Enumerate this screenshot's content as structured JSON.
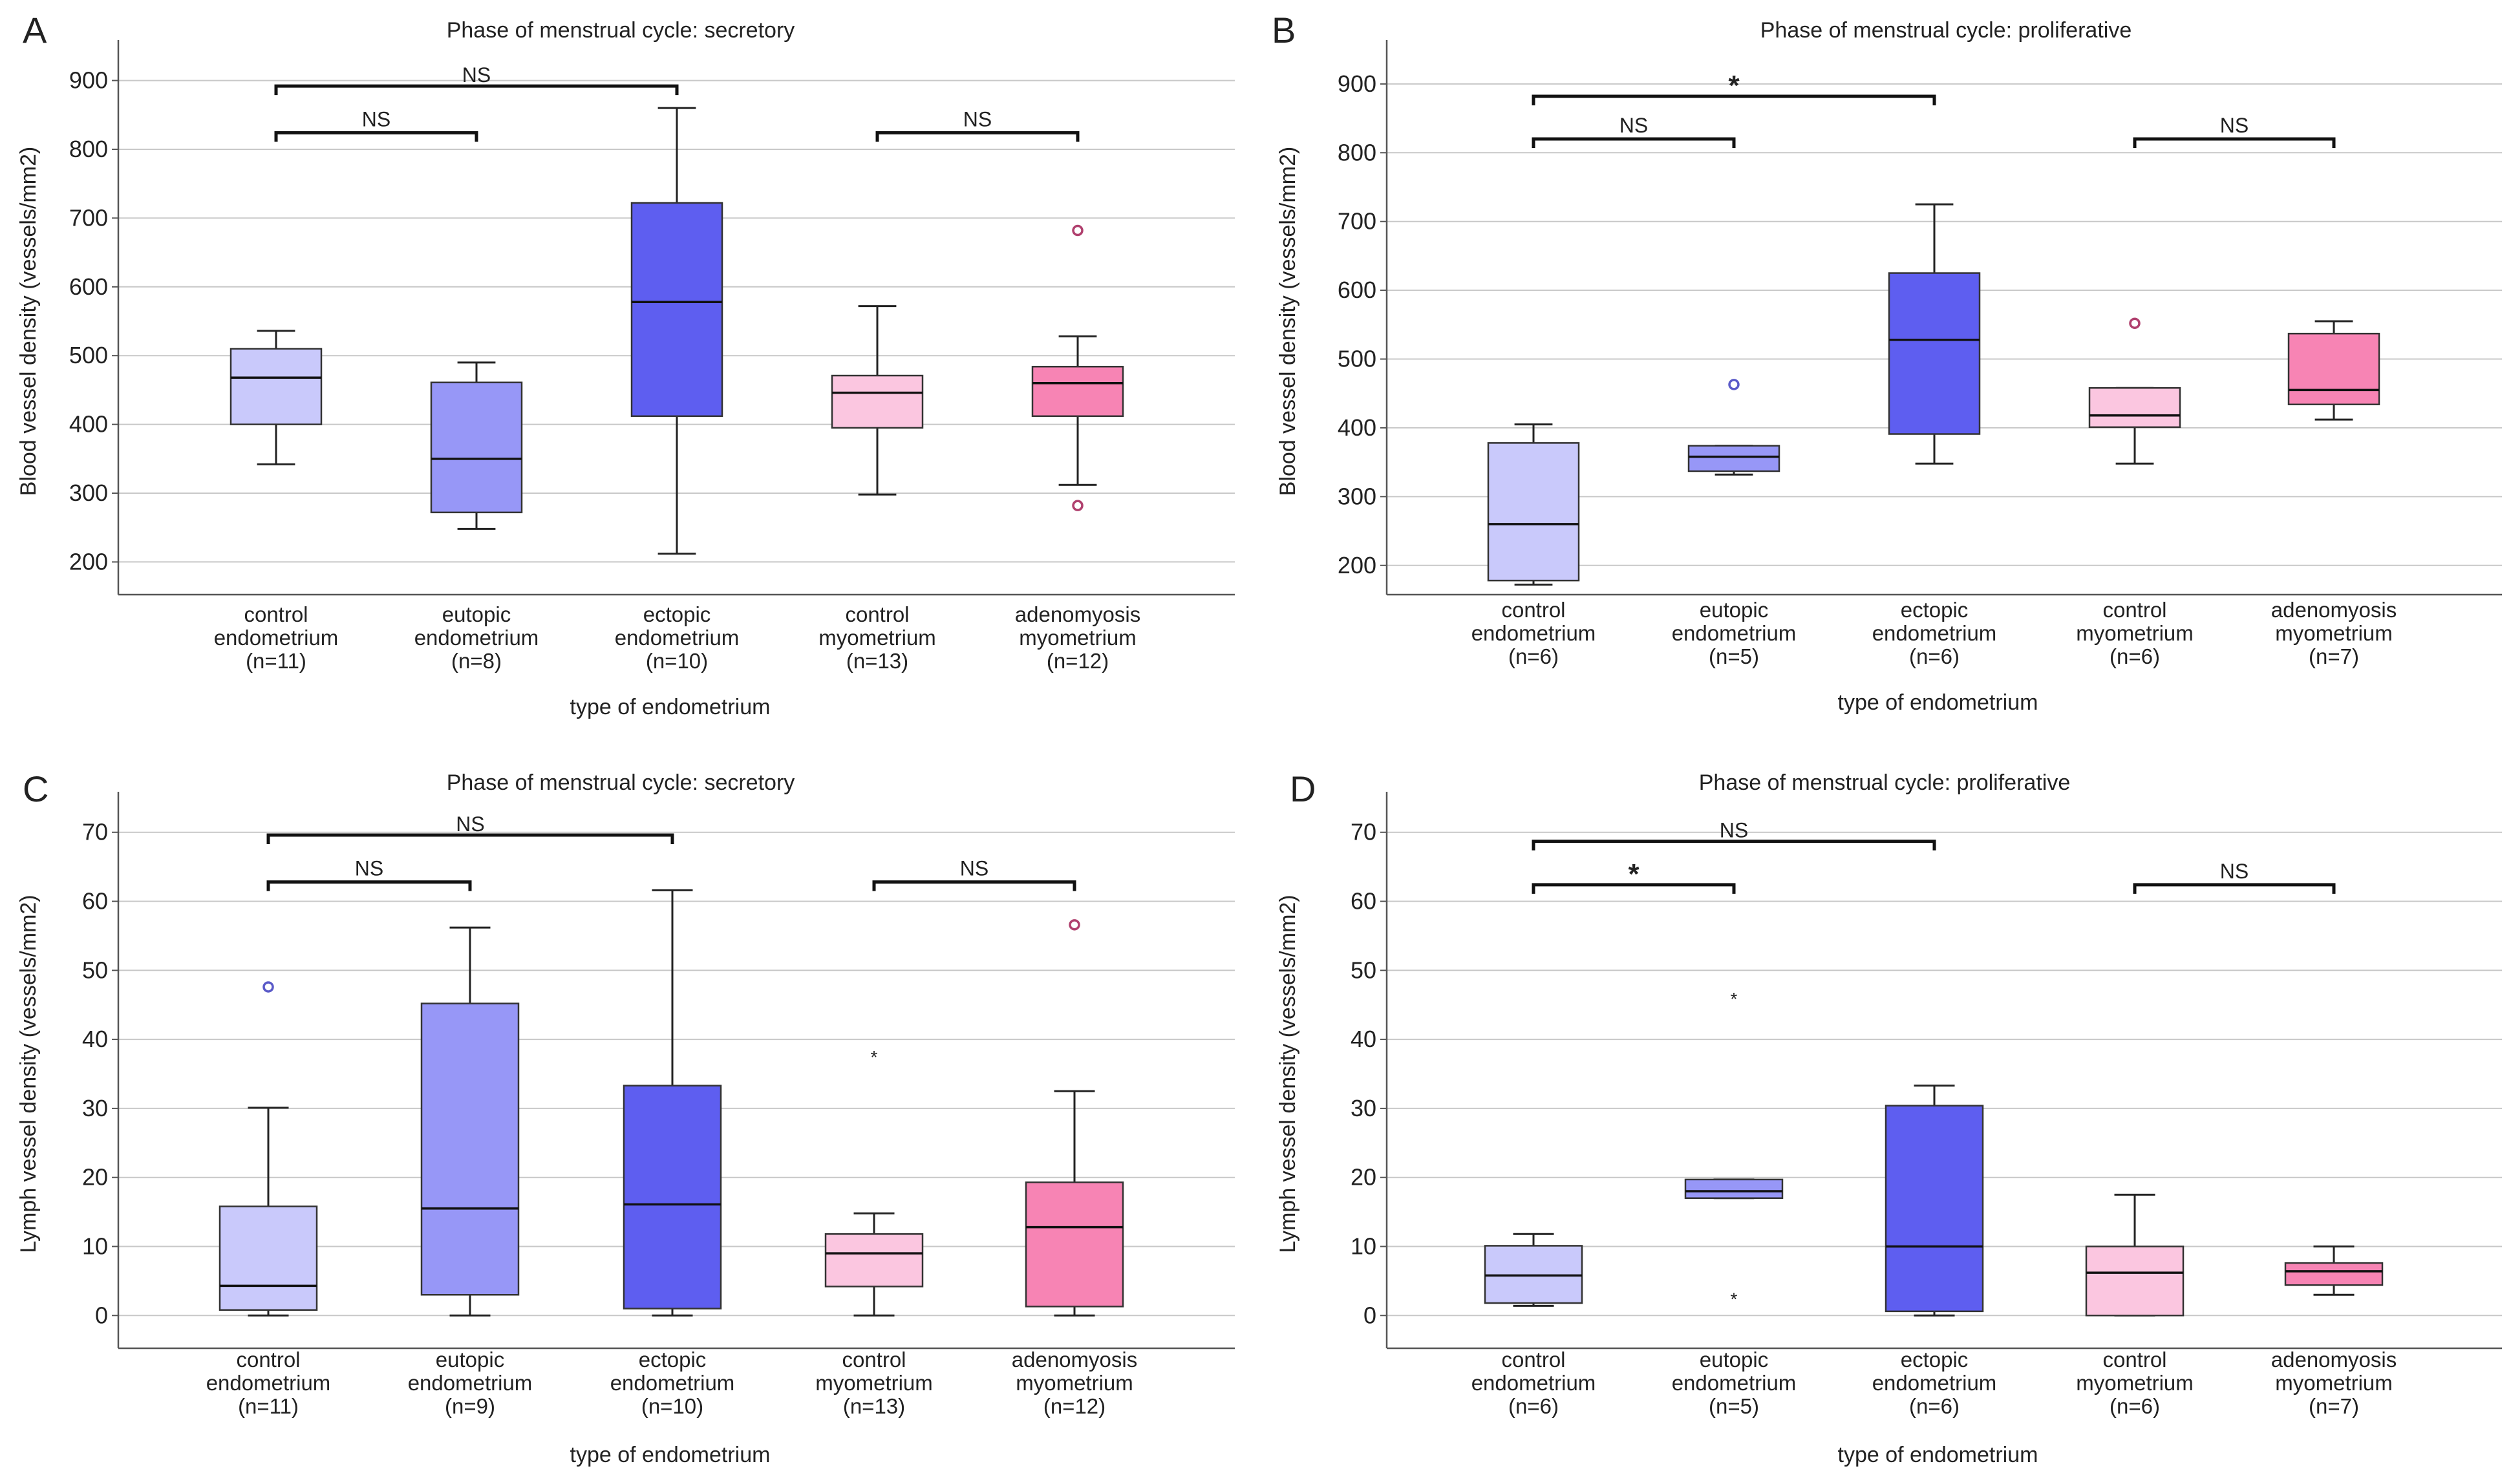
{
  "chart_data": [
    {
      "panel_label": "A",
      "type": "boxplot",
      "title": "Phase of menstrual cycle: secretory",
      "ylabel": "Blood vessel density (vessels/mm2)",
      "xlabel": "type of endometrium",
      "ylim": [
        160,
        940
      ],
      "yticks": [
        200,
        300,
        400,
        500,
        600,
        700,
        800,
        900
      ],
      "categories": [
        {
          "lines": [
            "control",
            "endometrium",
            "(n=11)"
          ],
          "color": "#c9c9fb",
          "q1": 400,
          "median": 468,
          "q3": 510,
          "whisker_low": 342,
          "whisker_high": 536,
          "outliers": []
        },
        {
          "lines": [
            "eutopic",
            "endometrium",
            "(n=8)"
          ],
          "color": "#9797f7",
          "q1": 272,
          "median": 350,
          "q3": 461,
          "whisker_low": 248,
          "whisker_high": 490,
          "outliers": []
        },
        {
          "lines": [
            "ectopic",
            "endometrium",
            "(n=10)"
          ],
          "color": "#5e5ef0",
          "q1": 412,
          "median": 578,
          "q3": 722,
          "whisker_low": 212,
          "whisker_high": 860,
          "outliers": []
        },
        {
          "lines": [
            "control",
            "myometrium",
            "(n=13)"
          ],
          "color": "#fbc6e0",
          "q1": 395,
          "median": 446,
          "q3": 471,
          "whisker_low": 298,
          "whisker_high": 572,
          "outliers": []
        },
        {
          "lines": [
            "adenomyosis",
            "myometrium",
            "(n=12)"
          ],
          "color": "#f784b4",
          "q1": 412,
          "median": 460,
          "q3": 484,
          "whisker_low": 312,
          "whisker_high": 528,
          "outliers": [
            {
              "value": 682,
              "marker": "circle"
            },
            {
              "value": 282,
              "marker": "circle"
            }
          ]
        }
      ],
      "comparisons": [
        {
          "from": 0,
          "to": 2,
          "y": 892,
          "label": "NS",
          "kind": "text"
        },
        {
          "from": 0,
          "to": 1,
          "y": 824,
          "label": "NS",
          "kind": "text"
        },
        {
          "from": 3,
          "to": 4,
          "y": 824,
          "label": "NS",
          "kind": "text"
        }
      ]
    },
    {
      "panel_label": "B",
      "type": "boxplot",
      "title": "Phase of menstrual cycle: proliferative",
      "ylabel": "Blood vessel density (vessels/mm2)",
      "xlabel": "type of endometrium",
      "ylim": [
        165,
        945
      ],
      "yticks": [
        200,
        300,
        400,
        500,
        600,
        700,
        800,
        900
      ],
      "categories": [
        {
          "lines": [
            "control",
            "endometrium",
            "(n=6)"
          ],
          "color": "#c9c9fb",
          "q1": 178,
          "median": 260,
          "q3": 378,
          "whisker_low": 172,
          "whisker_high": 405,
          "outliers": []
        },
        {
          "lines": [
            "eutopic",
            "endometrium",
            "(n=5)"
          ],
          "color": "#9797f7",
          "q1": 337,
          "median": 358,
          "q3": 374,
          "whisker_low": 332,
          "whisker_high": 374,
          "outliers": [
            {
              "value": 463,
              "marker": "circle"
            }
          ]
        },
        {
          "lines": [
            "ectopic",
            "endometrium",
            "(n=6)"
          ],
          "color": "#5e5ef0",
          "q1": 391,
          "median": 528,
          "q3": 625,
          "whisker_low": 348,
          "whisker_high": 725,
          "outliers": []
        },
        {
          "lines": [
            "control",
            "myometrium",
            "(n=6)"
          ],
          "color": "#fbc6e0",
          "q1": 401,
          "median": 418,
          "q3": 458,
          "whisker_low": 348,
          "whisker_high": 458,
          "outliers": [
            {
              "value": 552,
              "marker": "circle"
            }
          ]
        },
        {
          "lines": [
            "adenomyosis",
            "myometrium",
            "(n=7)"
          ],
          "color": "#f784b4",
          "q1": 434,
          "median": 455,
          "q3": 537,
          "whisker_low": 412,
          "whisker_high": 555,
          "outliers": []
        }
      ],
      "comparisons": [
        {
          "from": 0,
          "to": 2,
          "y": 882,
          "label": "*",
          "kind": "star"
        },
        {
          "from": 0,
          "to": 1,
          "y": 820,
          "label": "NS",
          "kind": "text"
        },
        {
          "from": 3,
          "to": 4,
          "y": 820,
          "label": "NS",
          "kind": "text"
        }
      ]
    },
    {
      "panel_label": "C",
      "type": "boxplot",
      "title": "Phase of menstrual cycle: secretory",
      "ylabel": "Lymph vessel density (vessels/mm2)",
      "xlabel": "type of endometrium",
      "ylim": [
        -4,
        74
      ],
      "yticks": [
        0,
        10,
        20,
        30,
        40,
        50,
        60,
        70
      ],
      "categories": [
        {
          "lines": [
            "control",
            "endometrium",
            "(n=11)"
          ],
          "color": "#c9c9fb",
          "q1": 0.8,
          "median": 4.3,
          "q3": 15.8,
          "whisker_low": 0,
          "whisker_high": 30.1,
          "outliers": [
            {
              "value": 47.6,
              "marker": "circle"
            }
          ]
        },
        {
          "lines": [
            "eutopic",
            "endometrium",
            "(n=9)"
          ],
          "color": "#9797f7",
          "q1": 3.0,
          "median": 15.5,
          "q3": 45.2,
          "whisker_low": 0,
          "whisker_high": 56.2,
          "outliers": []
        },
        {
          "lines": [
            "ectopic",
            "endometrium",
            "(n=10)"
          ],
          "color": "#5e5ef0",
          "q1": 1.0,
          "median": 16.1,
          "q3": 33.3,
          "whisker_low": 0,
          "whisker_high": 61.6,
          "outliers": []
        },
        {
          "lines": [
            "control",
            "myometrium",
            "(n=13)"
          ],
          "color": "#fbc6e0",
          "q1": 4.2,
          "median": 9.0,
          "q3": 11.8,
          "whisker_low": 0,
          "whisker_high": 14.8,
          "outliers": [
            {
              "value": 37.5,
              "marker": "star"
            }
          ]
        },
        {
          "lines": [
            "adenomyosis",
            "myometrium",
            "(n=12)"
          ],
          "color": "#f784b4",
          "q1": 1.3,
          "median": 12.8,
          "q3": 19.3,
          "whisker_low": 0,
          "whisker_high": 32.5,
          "outliers": [
            {
              "value": 56.6,
              "marker": "circle"
            }
          ]
        }
      ],
      "comparisons": [
        {
          "from": 0,
          "to": 2,
          "y": 69.6,
          "label": "NS",
          "kind": "text"
        },
        {
          "from": 0,
          "to": 1,
          "y": 62.8,
          "label": "NS",
          "kind": "text"
        },
        {
          "from": 3,
          "to": 4,
          "y": 62.8,
          "label": "NS",
          "kind": "text"
        }
      ]
    },
    {
      "panel_label": "D",
      "type": "boxplot",
      "title": "Phase of menstrual cycle: proliferative",
      "ylabel": "Lymph vessel density (vessels/mm2)",
      "xlabel": "type of endometrium",
      "ylim": [
        -4,
        74
      ],
      "yticks": [
        0,
        10,
        20,
        30,
        40,
        50,
        60,
        70
      ],
      "categories": [
        {
          "lines": [
            "control",
            "endometrium",
            "(n=6)"
          ],
          "color": "#c9c9fb",
          "q1": 1.8,
          "median": 5.8,
          "q3": 10.1,
          "whisker_low": 1.4,
          "whisker_high": 11.8,
          "outliers": []
        },
        {
          "lines": [
            "eutopic",
            "endometrium",
            "(n=5)"
          ],
          "color": "#9797f7",
          "q1": 17.0,
          "median": 18.0,
          "q3": 19.7,
          "whisker_low": 17.0,
          "whisker_high": 19.7,
          "outliers": [
            {
              "value": 45.9,
              "marker": "star"
            },
            {
              "value": 2.4,
              "marker": "star"
            }
          ]
        },
        {
          "lines": [
            "ectopic",
            "endometrium",
            "(n=6)"
          ],
          "color": "#5e5ef0",
          "q1": 0.6,
          "median": 10.0,
          "q3": 30.4,
          "whisker_low": 0,
          "whisker_high": 33.3,
          "outliers": []
        },
        {
          "lines": [
            "control",
            "myometrium",
            "(n=6)"
          ],
          "color": "#fbc6e0",
          "q1": 0,
          "median": 6.2,
          "q3": 10.0,
          "whisker_low": 0,
          "whisker_high": 17.5,
          "outliers": []
        },
        {
          "lines": [
            "adenomyosis",
            "myometrium",
            "(n=7)"
          ],
          "color": "#f784b4",
          "q1": 4.4,
          "median": 6.4,
          "q3": 7.6,
          "whisker_low": 3.0,
          "whisker_high": 10.0,
          "outliers": []
        }
      ],
      "comparisons": [
        {
          "from": 0,
          "to": 2,
          "y": 68.7,
          "label": "NS",
          "kind": "text"
        },
        {
          "from": 0,
          "to": 1,
          "y": 62.4,
          "label": "*",
          "kind": "star"
        },
        {
          "from": 3,
          "to": 4,
          "y": 62.4,
          "label": "NS",
          "kind": "text"
        }
      ]
    }
  ]
}
